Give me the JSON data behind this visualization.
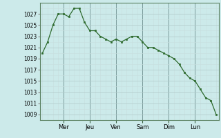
{
  "y_values": [
    1020,
    1022,
    1025,
    1027,
    1027,
    1026.5,
    1028,
    1028,
    1025.5,
    1024,
    1024,
    1023,
    1022.5,
    1022,
    1022.5,
    1022,
    1022.5,
    1023,
    1023,
    1022,
    1021,
    1021,
    1020.5,
    1020,
    1019.5,
    1019,
    1018,
    1016.5,
    1015.5,
    1015,
    1013.5,
    1012,
    1011.5,
    1009
  ],
  "x_ticks_labels": [
    "Mer",
    "Jeu",
    "Ven",
    "Sam",
    "Dim",
    "Lun"
  ],
  "x_ticks_pos": [
    4,
    9,
    14,
    19,
    24,
    29
  ],
  "y_min": 1008,
  "y_max": 1029,
  "y_ticks": [
    1009,
    1011,
    1013,
    1015,
    1017,
    1019,
    1021,
    1023,
    1025,
    1027
  ],
  "line_color": "#2d6a2d",
  "marker_color": "#2d6a2d",
  "bg_color": "#cceaea",
  "grid_major_color": "#b0c8c8",
  "grid_minor_color": "#c8dede",
  "major_vline_color": "#7a9a9a",
  "major_vline_positions": [
    4,
    9,
    14,
    19,
    24,
    29
  ]
}
